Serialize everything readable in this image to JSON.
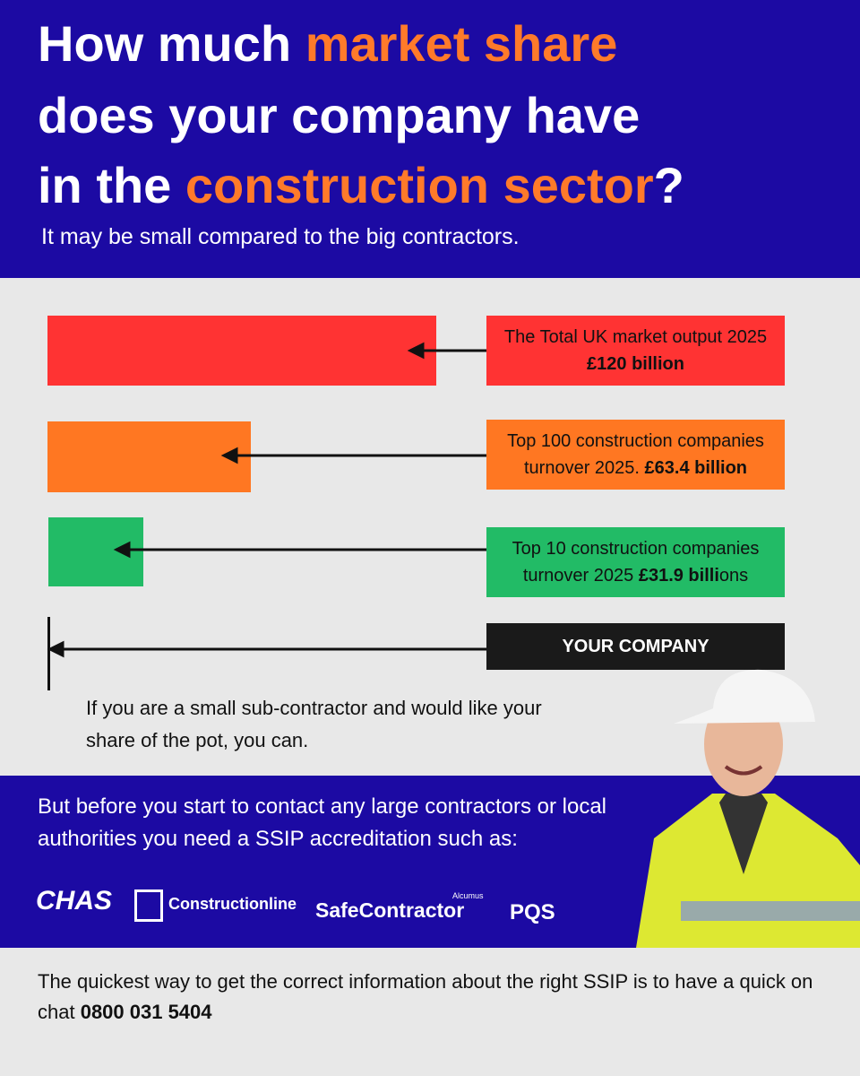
{
  "header": {
    "title": [
      [
        {
          "text": "How much ",
          "accent": false
        },
        {
          "text": "market share",
          "accent": true
        }
      ],
      [
        {
          "text": "does your company have",
          "accent": false
        }
      ],
      [
        {
          "text": "in the ",
          "accent": false
        },
        {
          "text": "construction sector",
          "accent": true
        },
        {
          "text": "?",
          "accent": false
        }
      ]
    ],
    "subtitle": "It may be small compared to the big contractors."
  },
  "bars": [
    {
      "parts": [
        {
          "text": "The Total UK market output",
          "bold": false
        },
        {
          "text": " 2025 ",
          "bold": false
        },
        {
          "text": "£120 billion",
          "bold": true
        }
      ],
      "color": "#ff3333"
    },
    {
      "parts": [
        {
          "text": "Top 100 construction companies turnover 2025. ",
          "bold": false
        },
        {
          "text": "£63.4 billion",
          "bold": true
        }
      ],
      "color": "#ff7722"
    },
    {
      "parts": [
        {
          "text": "Top 10 construction companies turnover 2025 ",
          "bold": false
        },
        {
          "text": "£31.9 billi",
          "bold": true
        },
        {
          "text": "ons",
          "bold": false
        }
      ],
      "color": "#22bb66"
    },
    {
      "parts": [
        {
          "text": "YOUR COMPANY",
          "bold": true
        }
      ],
      "color": "#1a1a1a"
    }
  ],
  "note": "If you are a small sub-contractor and would like your share of the pot, you can.",
  "accreditation": {
    "text": "But before you start to contact any large contractors or local authorities you need a SSIP accreditation such as:",
    "logos": [
      "CHAS",
      "Constructionline",
      "Alcumus",
      "SafeContractor",
      "PQS"
    ]
  },
  "footer": {
    "text": "The quickest way to get the correct information about the right SSIP is to have a quick on chat ",
    "phone": "0800 031 5404"
  }
}
